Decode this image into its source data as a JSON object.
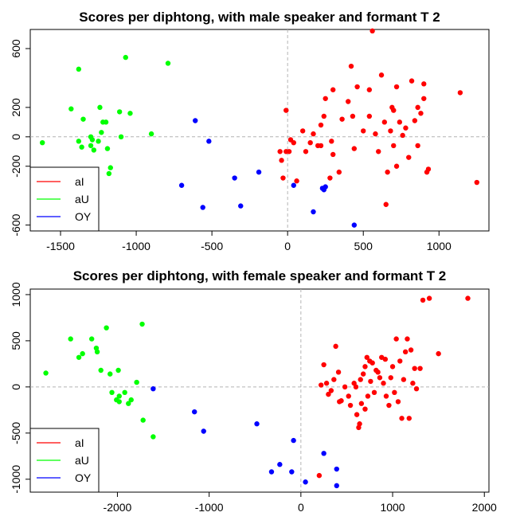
{
  "chart_data": [
    {
      "type": "scatter",
      "title": "Scores per diphtong, with male speaker and formant T 2",
      "xlabel": "",
      "ylabel": "",
      "xlim": [
        -1700,
        1330
      ],
      "ylim": [
        -640,
        730
      ],
      "xticks": [
        -1500,
        -1000,
        -500,
        0,
        500,
        1000
      ],
      "yticks": [
        -600,
        -200,
        0,
        200,
        600
      ],
      "xtick_labels": [
        "-1500",
        "-1000",
        "-500",
        "0",
        "500",
        "1000"
      ],
      "ytick_labels": [
        "-600",
        "-200",
        "0",
        "200",
        "600"
      ],
      "reference_lines": {
        "x": 0,
        "y": 0
      },
      "grid": false,
      "legend_position": "bottom-left",
      "series": [
        {
          "name": "aI",
          "color": "#ff0000",
          "points": [
            [
              -10,
              180
            ],
            [
              -50,
              -100
            ],
            [
              -10,
              -100
            ],
            [
              10,
              -100
            ],
            [
              -30,
              -280
            ],
            [
              -40,
              -160
            ],
            [
              20,
              -20
            ],
            [
              40,
              -40
            ],
            [
              60,
              -300
            ],
            [
              100,
              40
            ],
            [
              120,
              -100
            ],
            [
              150,
              -40
            ],
            [
              170,
              20
            ],
            [
              200,
              -60
            ],
            [
              220,
              -60
            ],
            [
              220,
              80
            ],
            [
              240,
              140
            ],
            [
              250,
              260
            ],
            [
              280,
              -280
            ],
            [
              290,
              -30
            ],
            [
              300,
              320
            ],
            [
              300,
              -120
            ],
            [
              340,
              -240
            ],
            [
              360,
              120
            ],
            [
              400,
              240
            ],
            [
              420,
              480
            ],
            [
              430,
              140
            ],
            [
              440,
              -80
            ],
            [
              460,
              340
            ],
            [
              500,
              40
            ],
            [
              540,
              320
            ],
            [
              540,
              140
            ],
            [
              560,
              720
            ],
            [
              580,
              20
            ],
            [
              600,
              -100
            ],
            [
              620,
              420
            ],
            [
              640,
              100
            ],
            [
              650,
              -460
            ],
            [
              660,
              -240
            ],
            [
              680,
              40
            ],
            [
              690,
              200
            ],
            [
              700,
              180
            ],
            [
              720,
              340
            ],
            [
              720,
              -200
            ],
            [
              740,
              100
            ],
            [
              760,
              10
            ],
            [
              780,
              60
            ],
            [
              800,
              -140
            ],
            [
              820,
              380
            ],
            [
              840,
              110
            ],
            [
              860,
              200
            ],
            [
              860,
              -60
            ],
            [
              880,
              160
            ],
            [
              900,
              360
            ],
            [
              900,
              260
            ],
            [
              920,
              -240
            ],
            [
              930,
              -220
            ],
            [
              1140,
              300
            ],
            [
              1250,
              -310
            ],
            [
              700,
              -60
            ]
          ]
        },
        {
          "name": "aU",
          "color": "#00ff00",
          "points": [
            [
              -1620,
              -40
            ],
            [
              -1380,
              460
            ],
            [
              -1070,
              540
            ],
            [
              -790,
              500
            ],
            [
              -1430,
              190
            ],
            [
              -1240,
              200
            ],
            [
              -1350,
              120
            ],
            [
              -1380,
              -30
            ],
            [
              -1300,
              -60
            ],
            [
              -1220,
              100
            ],
            [
              -1200,
              100
            ],
            [
              -1290,
              -20
            ],
            [
              -1300,
              0
            ],
            [
              -1230,
              30
            ],
            [
              -1250,
              -30
            ],
            [
              -1110,
              170
            ],
            [
              -1040,
              160
            ],
            [
              -900,
              20
            ],
            [
              -1100,
              0
            ],
            [
              -1360,
              -70
            ],
            [
              -1280,
              -90
            ],
            [
              -1190,
              -80
            ],
            [
              -1170,
              -210
            ],
            [
              -1180,
              -250
            ]
          ]
        },
        {
          "name": "OY",
          "color": "#0000ff",
          "points": [
            [
              -610,
              110
            ],
            [
              -520,
              -30
            ],
            [
              -700,
              -330
            ],
            [
              -560,
              -480
            ],
            [
              -350,
              -280
            ],
            [
              -310,
              -470
            ],
            [
              -190,
              -240
            ],
            [
              40,
              -330
            ],
            [
              170,
              -510
            ],
            [
              230,
              -350
            ],
            [
              240,
              -360
            ],
            [
              250,
              -340
            ],
            [
              440,
              -600
            ]
          ]
        }
      ]
    },
    {
      "type": "scatter",
      "title": "Scores per diphtong, with female speaker and formant T 2",
      "xlabel": "",
      "ylabel": "",
      "xlim": [
        -2950,
        2050
      ],
      "ylim": [
        -1140,
        1060
      ],
      "xticks": [
        -2000,
        -1000,
        0,
        1000,
        2000
      ],
      "yticks": [
        -1000,
        -500,
        0,
        500,
        1000
      ],
      "xtick_labels": [
        "-2000",
        "-1000",
        "0",
        "1000",
        "2000"
      ],
      "ytick_labels": [
        "-1000",
        "-500",
        "0",
        "500",
        "1000"
      ],
      "reference_lines": {
        "x": 0,
        "y": 0
      },
      "grid": false,
      "legend_position": "bottom-left",
      "series": [
        {
          "name": "aI",
          "color": "#ff0000",
          "points": [
            [
              200,
              -960
            ],
            [
              220,
              20
            ],
            [
              250,
              240
            ],
            [
              280,
              40
            ],
            [
              300,
              -80
            ],
            [
              330,
              -40
            ],
            [
              360,
              80
            ],
            [
              380,
              440
            ],
            [
              410,
              160
            ],
            [
              420,
              -160
            ],
            [
              440,
              -150
            ],
            [
              480,
              0
            ],
            [
              520,
              -100
            ],
            [
              540,
              -200
            ],
            [
              580,
              40
            ],
            [
              600,
              0
            ],
            [
              610,
              -300
            ],
            [
              630,
              -440
            ],
            [
              640,
              -400
            ],
            [
              650,
              80
            ],
            [
              660,
              -180
            ],
            [
              680,
              140
            ],
            [
              700,
              220
            ],
            [
              700,
              -240
            ],
            [
              720,
              320
            ],
            [
              730,
              -100
            ],
            [
              750,
              280
            ],
            [
              760,
              60
            ],
            [
              780,
              260
            ],
            [
              800,
              -60
            ],
            [
              820,
              180
            ],
            [
              840,
              160
            ],
            [
              860,
              100
            ],
            [
              880,
              320
            ],
            [
              900,
              40
            ],
            [
              920,
              300
            ],
            [
              930,
              -100
            ],
            [
              960,
              -200
            ],
            [
              980,
              100
            ],
            [
              1000,
              220
            ],
            [
              1020,
              -60
            ],
            [
              1040,
              520
            ],
            [
              1060,
              -160
            ],
            [
              1080,
              280
            ],
            [
              1100,
              -340
            ],
            [
              1120,
              80
            ],
            [
              1140,
              380
            ],
            [
              1160,
              520
            ],
            [
              1180,
              -340
            ],
            [
              1200,
              400
            ],
            [
              1220,
              40
            ],
            [
              1240,
              200
            ],
            [
              1260,
              -20
            ],
            [
              1300,
              200
            ],
            [
              1330,
              940
            ],
            [
              1400,
              960
            ],
            [
              1500,
              360
            ],
            [
              1820,
              960
            ]
          ]
        },
        {
          "name": "aU",
          "color": "#00ff00",
          "points": [
            [
              -2780,
              150
            ],
            [
              -2510,
              520
            ],
            [
              -2420,
              320
            ],
            [
              -2380,
              360
            ],
            [
              -2280,
              520
            ],
            [
              -2230,
              420
            ],
            [
              -2220,
              380
            ],
            [
              -2120,
              640
            ],
            [
              -2180,
              180
            ],
            [
              -2080,
              140
            ],
            [
              -1990,
              180
            ],
            [
              -2060,
              -60
            ],
            [
              -2010,
              -140
            ],
            [
              -1980,
              -100
            ],
            [
              -1920,
              -60
            ],
            [
              -1880,
              -180
            ],
            [
              -1850,
              -140
            ],
            [
              -1790,
              50
            ],
            [
              -1730,
              680
            ],
            [
              -1720,
              -360
            ],
            [
              -1610,
              -540
            ],
            [
              -1980,
              -160
            ]
          ]
        },
        {
          "name": "OY",
          "color": "#0000ff",
          "points": [
            [
              -1610,
              -20
            ],
            [
              -1160,
              -270
            ],
            [
              -1060,
              -480
            ],
            [
              -480,
              -400
            ],
            [
              -320,
              -920
            ],
            [
              -230,
              -840
            ],
            [
              -100,
              -920
            ],
            [
              -80,
              -580
            ],
            [
              50,
              -1030
            ],
            [
              250,
              -720
            ],
            [
              390,
              -1070
            ],
            [
              390,
              -890
            ]
          ]
        }
      ]
    }
  ]
}
